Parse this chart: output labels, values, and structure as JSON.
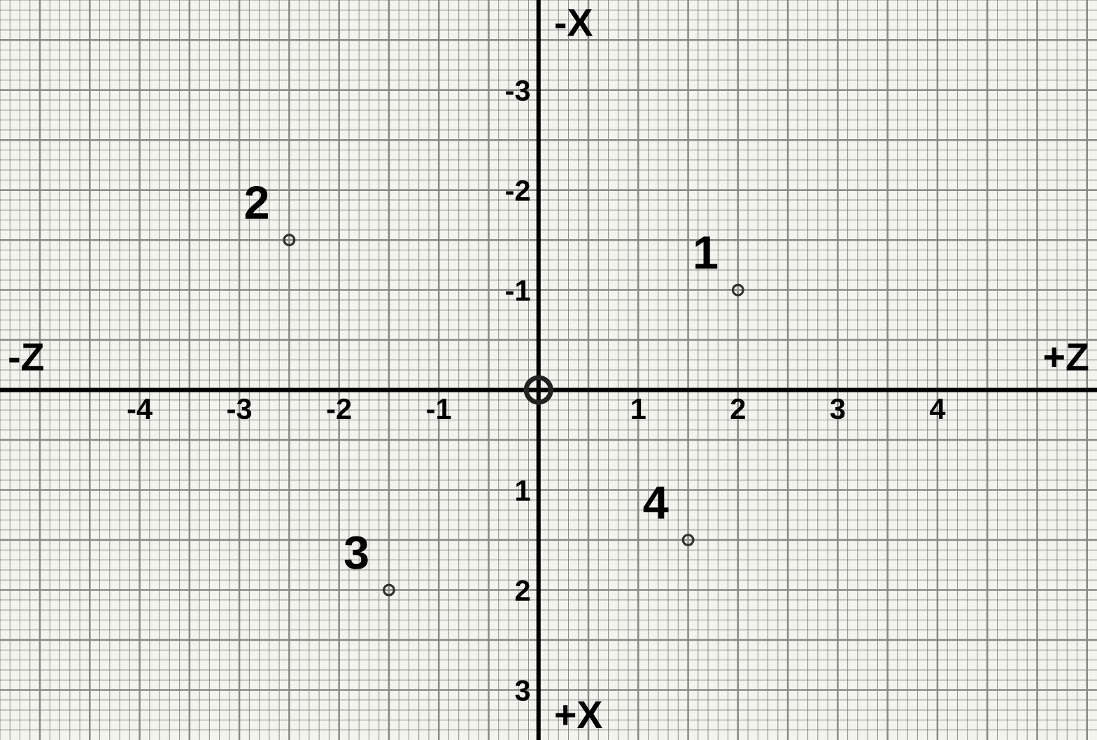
{
  "chart_data": {
    "type": "scatter",
    "xlabel": "+Z",
    "ylabel": "+X",
    "annotations": [
      "-Z",
      "-X",
      {
        "text": "1",
        "x": 2,
        "y": -1
      },
      {
        "text": "2",
        "x": -2.5,
        "y": -1.5
      },
      {
        "text": "3",
        "x": -1.5,
        "y": 2
      },
      {
        "text": "4",
        "x": 1.5,
        "y": 1.5
      }
    ],
    "series": [
      {
        "color": "#222222",
        "x": [
          0
        ],
        "values": [
          0
        ],
        "marker": "circle"
      },
      {
        "color": "#333333",
        "x": [
          2,
          -2.5,
          -1.5,
          1.5
        ],
        "values": [
          -1,
          -1.5,
          2,
          1.5
        ],
        "marker": "circle"
      }
    ],
    "xlim": [
      -5.4,
      5.6
    ],
    "ylim": [
      3.5,
      -3.9
    ],
    "xticks": [
      -4,
      -3,
      -2,
      -1,
      1,
      2,
      3,
      4
    ],
    "yticks": [
      -3,
      -2,
      -1,
      1,
      2,
      3
    ],
    "grid": true
  }
}
